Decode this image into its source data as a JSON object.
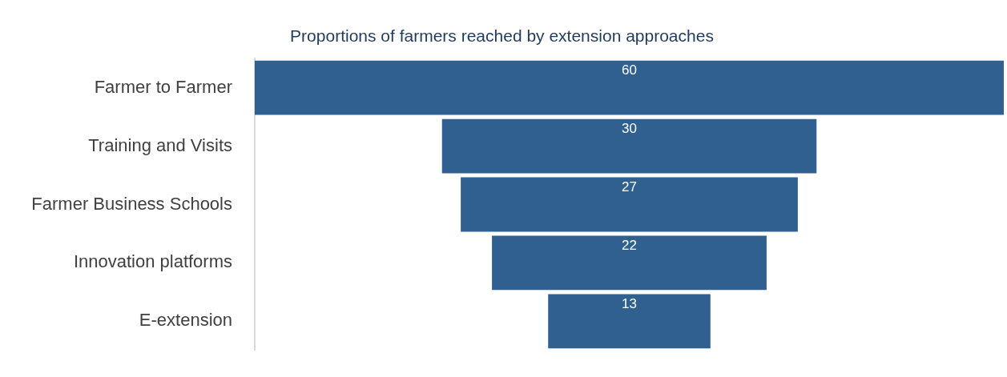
{
  "chart_data": {
    "type": "other",
    "title": "Proportions of farmers reached by extension approaches",
    "categories": [
      "Farmer to Farmer",
      "Training and Visits",
      "Farmer Business Schools",
      "Innovation platforms",
      "E-extension"
    ],
    "values": [
      60,
      30,
      27,
      22,
      13
    ],
    "color": "#2f6090",
    "data_labels": true
  }
}
